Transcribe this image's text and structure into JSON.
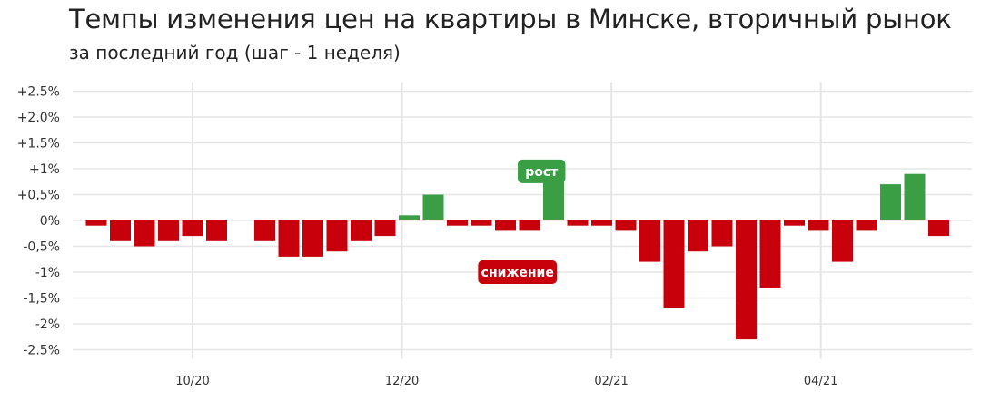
{
  "title": "Темпы изменения цен на квартиры в Минске, вторичный рынок",
  "subtitle": "за последний год (шаг - 1 неделя)",
  "colors": {
    "positive": "#3a9e44",
    "negative": "#c7000b",
    "grid": "#e5e5e5"
  },
  "chart_data": {
    "type": "bar",
    "title": "Темпы изменения цен на квартиры в Минске, вторичный рынок",
    "subtitle": "за последний год (шаг - 1 неделя)",
    "xlabel": "",
    "ylabel": "",
    "ylim": [
      -2.5,
      2.5
    ],
    "y_ticks": [
      {
        "value": 2.5,
        "label": "+2.5%"
      },
      {
        "value": 2.0,
        "label": "+2.0%"
      },
      {
        "value": 1.5,
        "label": "+1.5%"
      },
      {
        "value": 1.0,
        "label": "+1%"
      },
      {
        "value": 0.5,
        "label": "+0,5%"
      },
      {
        "value": 0,
        "label": "0%"
      },
      {
        "value": -0.5,
        "label": "-0,5%"
      },
      {
        "value": -1.0,
        "label": "-1%"
      },
      {
        "value": -1.5,
        "label": "-1,5%"
      },
      {
        "value": -2.0,
        "label": "-2%"
      },
      {
        "value": -2.5,
        "label": "-2.5%"
      }
    ],
    "x_ticks": [
      {
        "label": "10/20",
        "index": 4
      },
      {
        "label": "12/20",
        "index": 12.7
      },
      {
        "label": "02/21",
        "index": 21.4
      },
      {
        "label": "04/21",
        "index": 30.1
      }
    ],
    "values": [
      -0.1,
      -0.4,
      -0.5,
      -0.4,
      -0.3,
      -0.4,
      null,
      -0.4,
      -0.7,
      -0.7,
      -0.6,
      -0.4,
      -0.3,
      0.1,
      0.5,
      -0.1,
      -0.1,
      -0.2,
      -0.2,
      0.8,
      -0.1,
      -0.1,
      -0.2,
      -0.8,
      -1.7,
      -0.6,
      -0.5,
      -2.3,
      -1.3,
      -0.1,
      -0.2,
      -0.8,
      -0.2,
      0.7,
      0.9,
      -0.3
    ],
    "grid": true,
    "legend": "none",
    "annotations": [
      {
        "text": "рост",
        "x_index": 18.5,
        "y": 0.95,
        "color": "positive"
      },
      {
        "text": "снижение",
        "x_index": 17.5,
        "y": -1.0,
        "color": "negative"
      }
    ]
  }
}
